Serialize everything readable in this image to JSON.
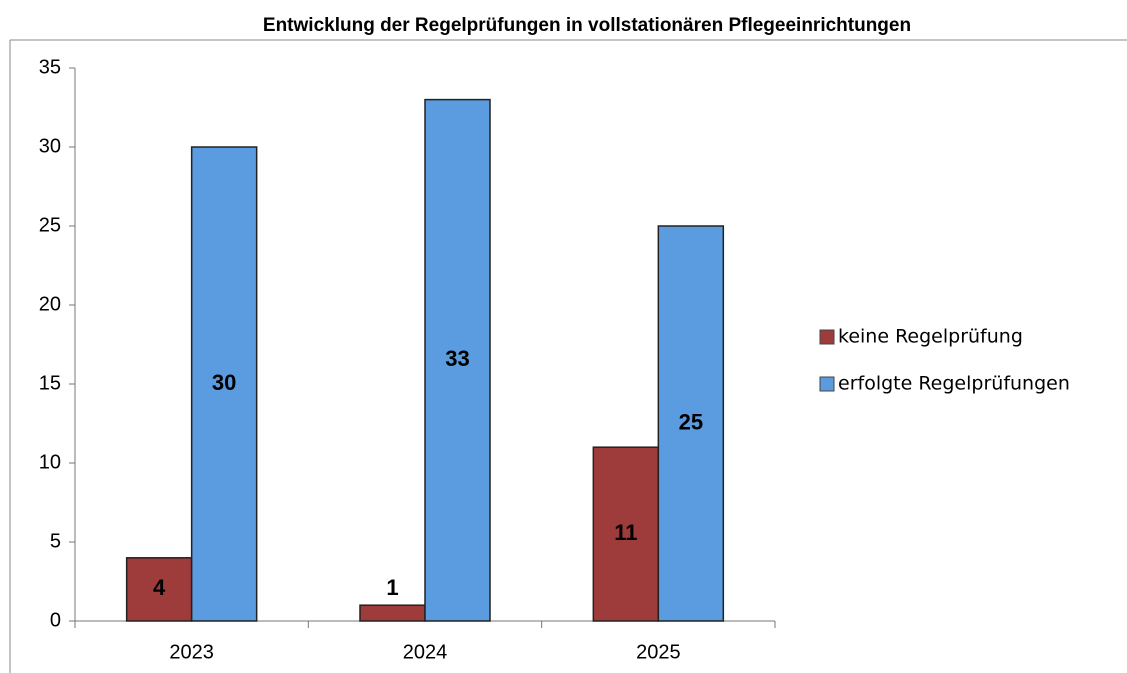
{
  "chart_data": {
    "type": "bar",
    "title": "Entwicklung der Regelprüfungen in vollstationären Pflegeeinrichtungen",
    "categories": [
      "2023",
      "2024",
      "2025"
    ],
    "series": [
      {
        "name": "keine Regelprüfung",
        "color": "#9e3b3b",
        "values": [
          4,
          1,
          11
        ]
      },
      {
        "name": "erfolgte Regelprüfungen",
        "color": "#5b9be0",
        "values": [
          30,
          33,
          25
        ]
      }
    ],
    "ylim": [
      0,
      35
    ],
    "yticks": [
      0,
      5,
      10,
      15,
      20,
      25,
      30,
      35
    ]
  }
}
